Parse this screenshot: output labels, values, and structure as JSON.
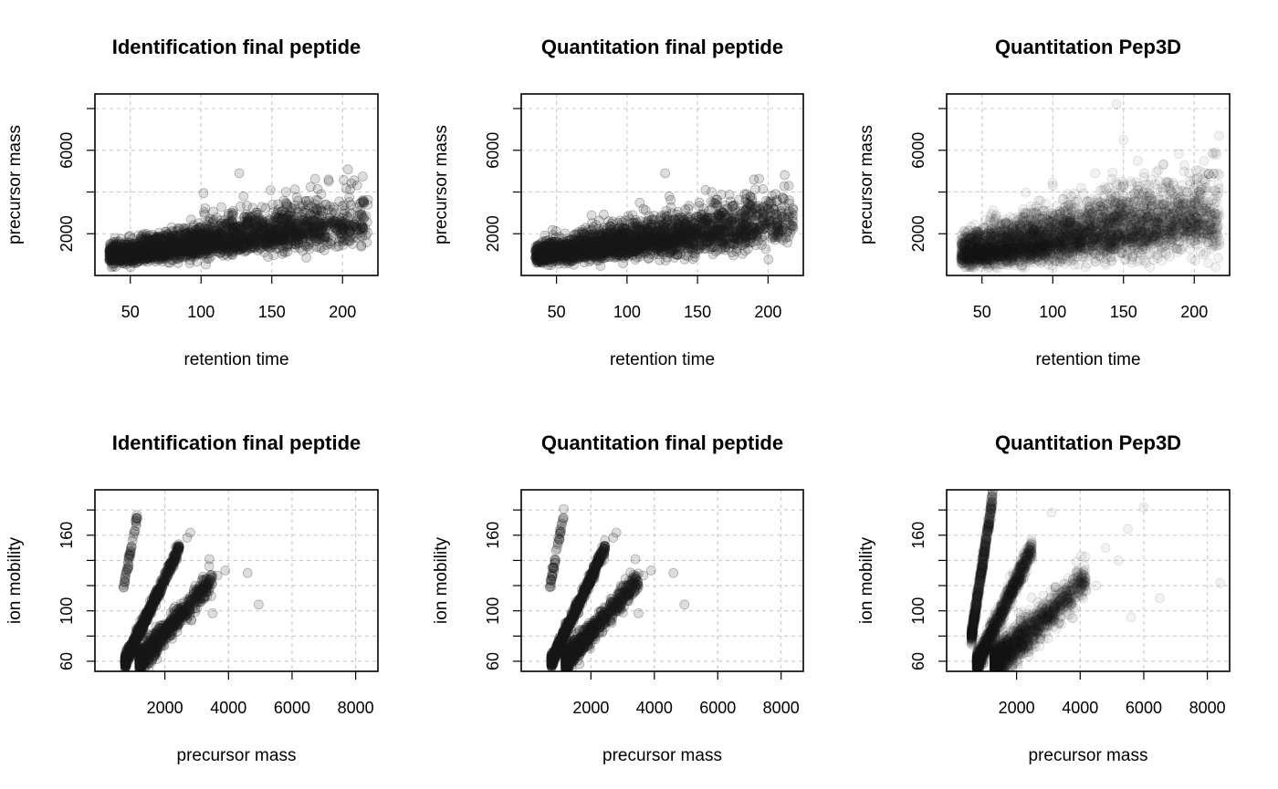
{
  "chart_data": [
    {
      "type": "scatter",
      "title": "Identification final peptide",
      "xlabel": "retention time",
      "ylabel": "precursor mass",
      "xlim": [
        25,
        225
      ],
      "ylim": [
        0,
        8700
      ],
      "xticks": [
        50,
        100,
        150,
        200
      ],
      "yticks": [
        2000,
        6000
      ],
      "ygrid": [
        2000,
        4000,
        6000,
        8000
      ],
      "yminorticks": [
        4000,
        8000
      ],
      "grid": true,
      "marker_color": "#1a1a1a",
      "marker_alpha": 0.15,
      "series": [
        {
          "shape": "band",
          "x_range": [
            35,
            218
          ],
          "y_start": 900,
          "y_end": 2500,
          "spread_start": 300,
          "spread_end": 900,
          "count": 2600,
          "decay": 0.022
        }
      ],
      "points": [
        {
          "x": 127,
          "y": 4900
        },
        {
          "x": 190,
          "y": 4600
        },
        {
          "x": 215,
          "y": 3600
        },
        {
          "x": 215,
          "y": 3450
        },
        {
          "x": 215,
          "y": 2800
        },
        {
          "x": 210,
          "y": 2300
        },
        {
          "x": 160,
          "y": 4000
        },
        {
          "x": 130,
          "y": 3800
        },
        {
          "x": 185,
          "y": 3900
        },
        {
          "x": 200,
          "y": 2600
        },
        {
          "x": 205,
          "y": 1700
        }
      ]
    },
    {
      "type": "scatter",
      "title": "Quantitation final peptide",
      "xlabel": "retention time",
      "ylabel": "precursor mass",
      "xlim": [
        25,
        225
      ],
      "ylim": [
        0,
        8700
      ],
      "xticks": [
        50,
        100,
        150,
        200
      ],
      "yticks": [
        2000,
        6000
      ],
      "ygrid": [
        2000,
        4000,
        6000,
        8000
      ],
      "yminorticks": [
        4000,
        8000
      ],
      "grid": true,
      "marker_color": "#1a1a1a",
      "marker_alpha": 0.15,
      "series": [
        {
          "shape": "band",
          "x_range": [
            35,
            218
          ],
          "y_start": 900,
          "y_end": 2500,
          "spread_start": 300,
          "spread_end": 900,
          "count": 2600,
          "decay": 0.022
        }
      ],
      "points": [
        {
          "x": 127,
          "y": 4900
        },
        {
          "x": 190,
          "y": 4600
        },
        {
          "x": 215,
          "y": 3600
        },
        {
          "x": 215,
          "y": 3450
        },
        {
          "x": 215,
          "y": 2800
        },
        {
          "x": 210,
          "y": 2300
        },
        {
          "x": 160,
          "y": 4000
        },
        {
          "x": 130,
          "y": 3800
        },
        {
          "x": 185,
          "y": 3900
        },
        {
          "x": 200,
          "y": 2600
        },
        {
          "x": 205,
          "y": 1700
        }
      ]
    },
    {
      "type": "scatter",
      "title": "Quantitation Pep3D",
      "xlabel": "retention time",
      "ylabel": "precursor mass",
      "xlim": [
        25,
        225
      ],
      "ylim": [
        0,
        8700
      ],
      "xticks": [
        50,
        100,
        150,
        200
      ],
      "yticks": [
        2000,
        6000
      ],
      "ygrid": [
        2000,
        4000,
        6000,
        8000
      ],
      "yminorticks": [
        4000,
        8000
      ],
      "grid": true,
      "marker_color": "#1a1a1a",
      "marker_alpha": 0.06,
      "series": [
        {
          "shape": "band",
          "x_range": [
            35,
            218
          ],
          "y_start": 1000,
          "y_end": 2700,
          "spread_start": 500,
          "spread_end": 1300,
          "count": 4200,
          "decay": 0.012
        }
      ],
      "points": [
        {
          "x": 145,
          "y": 8200
        },
        {
          "x": 215,
          "y": 5900
        },
        {
          "x": 160,
          "y": 5500
        },
        {
          "x": 130,
          "y": 4900
        },
        {
          "x": 150,
          "y": 6500
        },
        {
          "x": 180,
          "y": 4500
        },
        {
          "x": 200,
          "y": 4600
        },
        {
          "x": 120,
          "y": 4200
        },
        {
          "x": 100,
          "y": 4300
        },
        {
          "x": 90,
          "y": 3600
        },
        {
          "x": 210,
          "y": 600
        },
        {
          "x": 215,
          "y": 400
        }
      ]
    },
    {
      "type": "scatter",
      "title": "Identification final peptide",
      "xlabel": "precursor mass",
      "ylabel": "ion mobility",
      "xlim": [
        -200,
        8700
      ],
      "ylim": [
        52,
        196
      ],
      "xticks": [
        2000,
        4000,
        6000,
        8000
      ],
      "yticks": [
        60,
        100,
        160
      ],
      "ygrid": [
        60,
        80,
        100,
        120,
        140,
        160,
        180
      ],
      "yminorticks": [
        80,
        120,
        140,
        180
      ],
      "grid": true,
      "marker_color": "#1a1a1a",
      "marker_alpha": 0.15,
      "series": [
        {
          "shape": "line",
          "x_range": [
            750,
            2450
          ],
          "y_start": 60,
          "y_end": 150,
          "spread": 2.5,
          "count": 800,
          "decay": 1.0
        },
        {
          "shape": "line",
          "x_range": [
            1200,
            3500
          ],
          "y_start": 60,
          "y_end": 125,
          "spread": 4.5,
          "count": 900,
          "decay": 1.4
        },
        {
          "shape": "line",
          "x_range": [
            700,
            1150
          ],
          "y_start": 118,
          "y_end": 178,
          "spread": 2.0,
          "count": 45,
          "decay": 0.3
        }
      ],
      "points": [
        {
          "x": 4600,
          "y": 130
        },
        {
          "x": 4950,
          "y": 105
        },
        {
          "x": 3400,
          "y": 141
        },
        {
          "x": 3650,
          "y": 128
        },
        {
          "x": 3900,
          "y": 132
        },
        {
          "x": 2800,
          "y": 162
        },
        {
          "x": 2700,
          "y": 158
        },
        {
          "x": 3500,
          "y": 98
        },
        {
          "x": 3100,
          "y": 120
        }
      ]
    },
    {
      "type": "scatter",
      "title": "Quantitation final peptide",
      "xlabel": "precursor mass",
      "ylabel": "ion mobility",
      "xlim": [
        -200,
        8700
      ],
      "ylim": [
        52,
        196
      ],
      "xticks": [
        2000,
        4000,
        6000,
        8000
      ],
      "yticks": [
        60,
        100,
        160
      ],
      "ygrid": [
        60,
        80,
        100,
        120,
        140,
        160,
        180
      ],
      "yminorticks": [
        80,
        120,
        140,
        180
      ],
      "grid": true,
      "marker_color": "#1a1a1a",
      "marker_alpha": 0.15,
      "series": [
        {
          "shape": "line",
          "x_range": [
            750,
            2450
          ],
          "y_start": 60,
          "y_end": 150,
          "spread": 2.5,
          "count": 800,
          "decay": 1.0
        },
        {
          "shape": "line",
          "x_range": [
            1200,
            3500
          ],
          "y_start": 60,
          "y_end": 125,
          "spread": 4.5,
          "count": 900,
          "decay": 1.4
        },
        {
          "shape": "line",
          "x_range": [
            700,
            1150
          ],
          "y_start": 118,
          "y_end": 178,
          "spread": 2.0,
          "count": 45,
          "decay": 0.3
        }
      ],
      "points": [
        {
          "x": 4600,
          "y": 130
        },
        {
          "x": 4950,
          "y": 105
        },
        {
          "x": 3400,
          "y": 141
        },
        {
          "x": 3650,
          "y": 128
        },
        {
          "x": 3900,
          "y": 132
        },
        {
          "x": 2800,
          "y": 162
        },
        {
          "x": 2700,
          "y": 158
        },
        {
          "x": 3500,
          "y": 98
        },
        {
          "x": 3100,
          "y": 120
        }
      ]
    },
    {
      "type": "scatter",
      "title": "Quantitation Pep3D",
      "xlabel": "precursor mass",
      "ylabel": "ion mobility",
      "xlim": [
        -200,
        8700
      ],
      "ylim": [
        52,
        196
      ],
      "xticks": [
        2000,
        4000,
        6000,
        8000
      ],
      "yticks": [
        60,
        100,
        160
      ],
      "ygrid": [
        60,
        80,
        100,
        120,
        140,
        160,
        180
      ],
      "yminorticks": [
        80,
        120,
        140,
        180
      ],
      "grid": true,
      "marker_color": "#1a1a1a",
      "marker_alpha": 0.06,
      "series": [
        {
          "shape": "line",
          "x_range": [
            580,
            1250
          ],
          "y_start": 80,
          "y_end": 190,
          "spread": 3.5,
          "count": 700,
          "decay": 0.6
        },
        {
          "shape": "line",
          "x_range": [
            750,
            2500
          ],
          "y_start": 58,
          "y_end": 150,
          "spread": 4.0,
          "count": 1400,
          "decay": 1.0
        },
        {
          "shape": "line",
          "x_range": [
            1300,
            4200
          ],
          "y_start": 58,
          "y_end": 125,
          "spread": 7.0,
          "count": 1800,
          "decay": 1.5
        }
      ],
      "points": [
        {
          "x": 4050,
          "y": 120
        },
        {
          "x": 4500,
          "y": 120
        },
        {
          "x": 3100,
          "y": 178
        },
        {
          "x": 5500,
          "y": 165
        },
        {
          "x": 6000,
          "y": 182
        },
        {
          "x": 8400,
          "y": 122
        },
        {
          "x": 5200,
          "y": 140
        },
        {
          "x": 4800,
          "y": 150
        },
        {
          "x": 6500,
          "y": 110
        },
        {
          "x": 5600,
          "y": 95
        }
      ]
    }
  ]
}
